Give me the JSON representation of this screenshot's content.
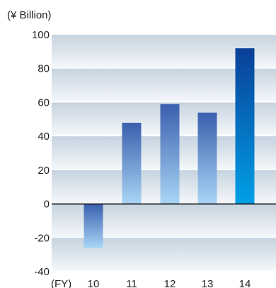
{
  "chart_data": {
    "type": "bar",
    "unit_label": "(¥ Billion)",
    "x_prefix_label": "(FY)",
    "categories": [
      "10",
      "11",
      "12",
      "13",
      "14"
    ],
    "values": [
      -26,
      48,
      59,
      54,
      92
    ],
    "ylim": [
      -40,
      100
    ],
    "yticks": [
      100,
      80,
      60,
      40,
      20,
      0,
      -20,
      -40
    ],
    "ytick_labels": [
      "100",
      "80",
      "60",
      "40",
      "20",
      "0",
      "-20",
      "-40"
    ],
    "grid": "horizontal bands",
    "legend": "none",
    "colors": {
      "bar_negative_top": "#3a5fae",
      "bar_negative_bottom": "#a9d6f5",
      "bar_positive_top": "#3a5fae",
      "bar_positive_bottom": "#a9d6f5",
      "bar_highlight_top": "#0a3f98",
      "bar_highlight_bottom": "#00a0e6",
      "band_top": "#c6d3df",
      "band_bottom": "#f4f7fa",
      "zero_line": "#111111"
    }
  }
}
